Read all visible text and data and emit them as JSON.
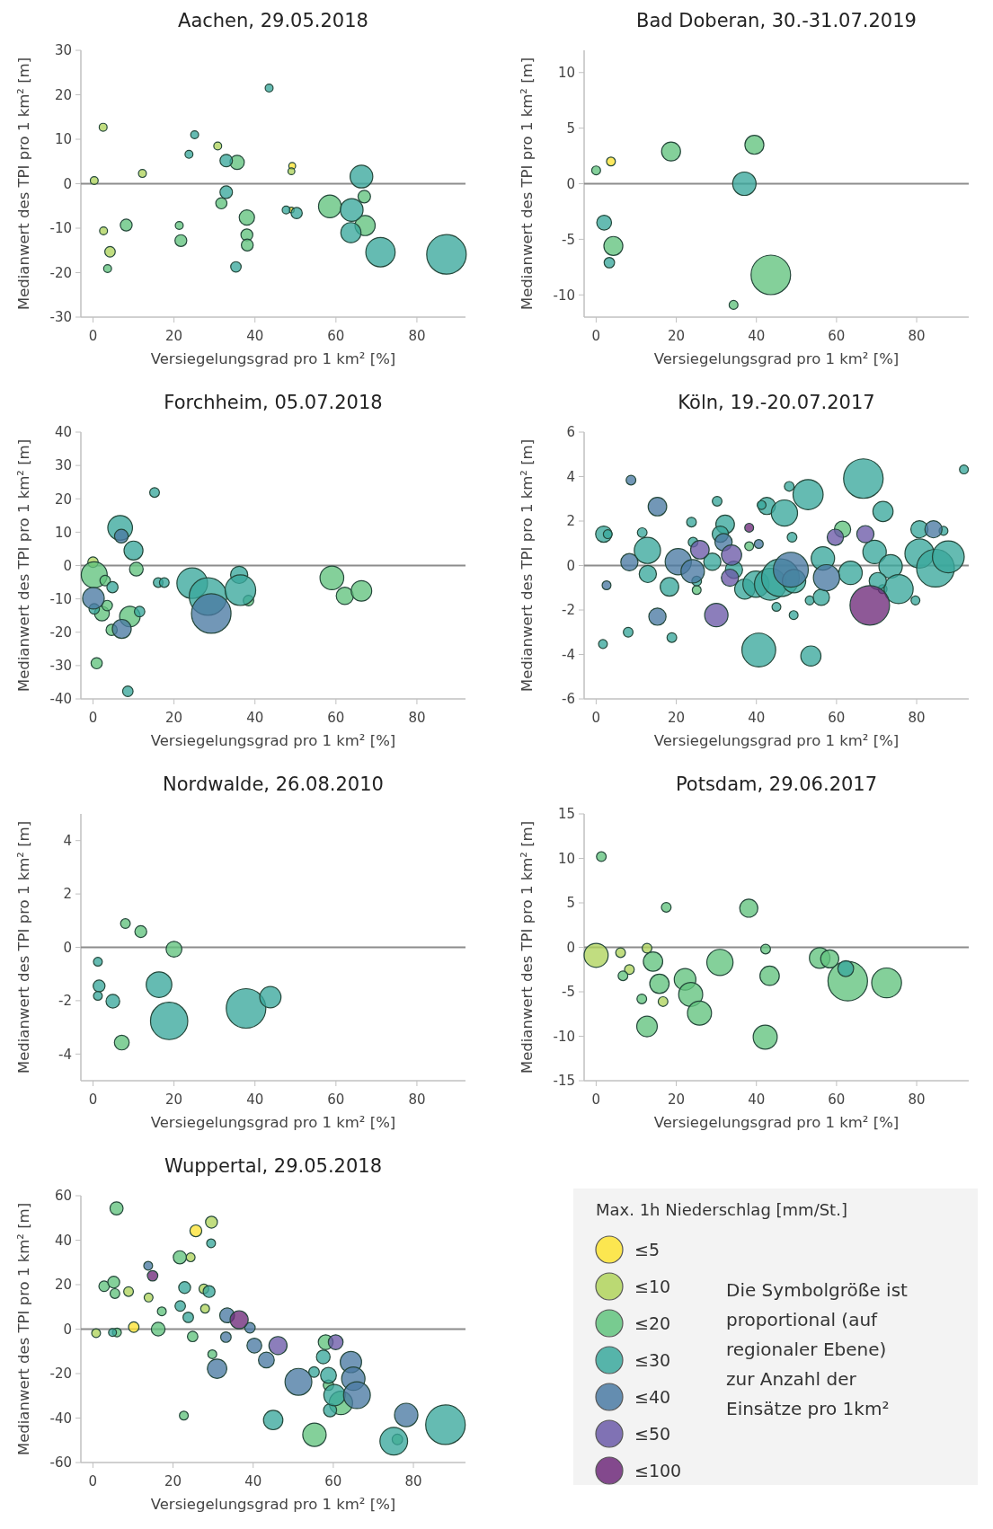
{
  "chart_data": [
    {
      "type": "bubble",
      "title": "Aachen, 29.05.2018",
      "xlabel": "Versiegelungsgrad pro 1 km² [%]",
      "ylabel": "Medianwert des TPI pro 1 km² [m]",
      "xlim": [
        -3,
        92
      ],
      "xticks": [
        0,
        20,
        40,
        60,
        80
      ],
      "ylim": [
        -30,
        30
      ],
      "yticks": [
        -30,
        -20,
        -10,
        0,
        10,
        20,
        30
      ],
      "ref_lines": [
        {
          "axis": "y",
          "value": 0,
          "color": "#8c8c8c"
        }
      ],
      "series": [
        {
          "color": "#fde333",
          "x": [
            49.2,
            49
          ],
          "values": [
            4,
            -5.9
          ],
          "sizes": [
            0.03,
            0.02
          ]
        },
        {
          "color": "#b0d45c",
          "x": [
            0.3,
            2.5,
            2.6,
            4.2,
            12.2,
            30.8,
            49
          ],
          "values": [
            0.7,
            12.7,
            -10.6,
            -15.3,
            2.3,
            8.5,
            2.8
          ],
          "sizes": [
            0.04,
            0.04,
            0.04,
            0.07,
            0.04,
            0.04,
            0.03
          ]
        },
        {
          "color": "#62c37e",
          "x": [
            3.6,
            8.2,
            21.3,
            21.7,
            31.7,
            35.6,
            38,
            38,
            38.1,
            58.5,
            67,
            67.2
          ],
          "values": [
            -19.1,
            -9.3,
            -9.4,
            -12.8,
            -4.4,
            4.8,
            -7.6,
            -11.5,
            -13.8,
            -5.1,
            -2.9,
            -9.4
          ],
          "sizes": [
            0.04,
            0.09,
            0.04,
            0.09,
            0.08,
            0.13,
            0.15,
            0.09,
            0.09,
            0.33,
            0.1,
            0.26
          ]
        },
        {
          "color": "#3aa89c",
          "x": [
            23.7,
            25.1,
            32.9,
            32.9,
            35.3,
            43.5,
            47.7,
            50.3,
            63.9,
            63.7,
            66.3,
            71,
            87.3
          ],
          "values": [
            6.6,
            11,
            5.2,
            -1.9,
            -18.7,
            21.5,
            -5.9,
            -6.6,
            -5.9,
            -11,
            1.6,
            -15.4,
            -15.9
          ],
          "sizes": [
            0.04,
            0.04,
            0.1,
            0.1,
            0.07,
            0.04,
            0.04,
            0.08,
            0.33,
            0.26,
            0.33,
            0.55,
            1
          ]
        }
      ]
    },
    {
      "type": "bubble",
      "title": "Bad Doberan, 30.-31.07.2019",
      "xlabel": "Versiegelungsgrad pro 1 km² [%]",
      "ylabel": "Medianwert des TPI pro 1 km² [m]",
      "xlim": [
        -3,
        93
      ],
      "xticks": [
        0,
        20,
        40,
        60,
        80
      ],
      "ylim": [
        -12,
        12
      ],
      "yticks": [
        -10,
        -5,
        0,
        5,
        10
      ],
      "ref_lines": [
        {
          "axis": "y",
          "value": 0,
          "color": "#8c8c8c"
        }
      ],
      "series": [
        {
          "color": "#fde333",
          "x": [
            3.7
          ],
          "values": [
            2
          ],
          "sizes": [
            0.05
          ]
        },
        {
          "color": "#62c37e",
          "x": [
            0,
            18.7,
            39.5,
            4.3,
            43.6,
            34.3
          ],
          "values": [
            1.2,
            2.9,
            3.5,
            -5.6,
            -8.2,
            -10.9
          ],
          "sizes": [
            0.05,
            0.23,
            0.23,
            0.23,
            1,
            0.05
          ]
        },
        {
          "color": "#3aa89c",
          "x": [
            37,
            2,
            3.3
          ],
          "values": [
            0,
            -3.5,
            -7.1
          ],
          "sizes": [
            0.35,
            0.14,
            0.07
          ]
        }
      ]
    },
    {
      "type": "bubble",
      "title": "Forchheim, 05.07.2018",
      "xlabel": "Versiegelungsgrad pro 1 km² [%]",
      "ylabel": "Medianwert des TPI pro 1 km² [m]",
      "xlim": [
        -3,
        92
      ],
      "xticks": [
        0,
        20,
        40,
        60,
        80
      ],
      "ylim": [
        -40,
        40
      ],
      "yticks": [
        -40,
        -30,
        -20,
        -10,
        0,
        10,
        20,
        30,
        40
      ],
      "ref_lines": [
        {
          "axis": "y",
          "value": 0,
          "color": "#8c8c8c"
        }
      ],
      "series": [
        {
          "color": "#b0d45c",
          "x": [
            0
          ],
          "values": [
            1
          ],
          "sizes": [
            0.07
          ]
        },
        {
          "color": "#62c37e",
          "x": [
            0.3,
            3,
            2.2,
            3.5,
            4.6,
            0.9,
            10.7,
            9.1,
            38.4,
            59,
            62.2,
            66.3
          ],
          "values": [
            -2.8,
            -4.5,
            -14.4,
            -12,
            -19.3,
            -29.3,
            -1.1,
            -15.3,
            -10.5,
            -3.7,
            -9.1,
            -7.6
          ],
          "sizes": [
            0.43,
            0.07,
            0.14,
            0.07,
            0.08,
            0.08,
            0.12,
            0.27,
            0.07,
            0.36,
            0.19,
            0.27
          ]
        },
        {
          "color": "#3aa89c",
          "x": [
            4.8,
            0.3,
            8.6,
            6.7,
            10,
            11.5,
            15.2,
            16.1,
            17.6,
            24.5,
            28.4,
            36.1,
            36.4
          ],
          "values": [
            -6.5,
            -13,
            -37.7,
            11.3,
            4.5,
            -13.8,
            21.9,
            -5.1,
            -5.1,
            -5.3,
            -9.3,
            -2.8,
            -7.4
          ],
          "sizes": [
            0.08,
            0.07,
            0.07,
            0.39,
            0.23,
            0.07,
            0.06,
            0.06,
            0.06,
            0.6,
            0.9,
            0.19,
            0.6
          ]
        },
        {
          "color": "#4a7aa3",
          "x": [
            0.1,
            7.1,
            7,
            29.2
          ],
          "values": [
            -9.8,
            -19,
            8.8,
            -14.4
          ],
          "sizes": [
            0.3,
            0.23,
            0.12,
            1
          ]
        }
      ]
    },
    {
      "type": "bubble",
      "title": "Köln, 19.-20.07.2017",
      "xlabel": "Versiegelungsgrad pro 1 km² [%]",
      "ylabel": "Medianwert des TPI pro 1 km² [m]",
      "xlim": [
        -3,
        93
      ],
      "xticks": [
        0,
        20,
        40,
        60,
        80
      ],
      "ylim": [
        -6,
        6
      ],
      "yticks": [
        -6,
        -4,
        -2,
        0,
        2,
        4,
        6
      ],
      "ref_lines": [
        {
          "axis": "y",
          "value": 0,
          "color": "#8c8c8c"
        }
      ],
      "series": [
        {
          "color": "#62c37e",
          "x": [
            38.2,
            25.1,
            61.5
          ],
          "values": [
            0.87,
            -1.1,
            1.63
          ],
          "sizes": [
            0.05,
            0.05,
            0.17
          ]
        },
        {
          "color": "#3aa89c",
          "x": [
            1.9,
            2.9,
            1.7,
            8,
            11.5,
            12.8,
            12.9,
            18.3,
            18.9,
            23.8,
            24.2,
            25.1,
            30.2,
            29,
            32.2,
            31,
            34.4,
            42.6,
            41.3,
            48.2,
            47,
            52.9,
            48.9,
            40.6,
            53.6,
            37.1,
            39.9,
            43.5,
            46,
            49.4,
            45,
            49.3,
            53.3,
            56.2,
            56.6,
            63.5,
            66.7,
            69.5,
            71.6,
            71.5,
            73.5,
            75.5,
            79.7,
            80.7,
            80.7,
            86.7,
            84.7,
            87.9,
            91.8,
            70.3
          ],
          "values": [
            1.41,
            1.41,
            -3.53,
            -3,
            1.48,
            0.68,
            -0.38,
            -0.96,
            -3.24,
            1.95,
            1.05,
            -0.7,
            2.89,
            0.17,
            1.85,
            1.41,
            -0.19,
            2.68,
            2.72,
            3.56,
            2.36,
            3.19,
            1.27,
            -3.8,
            -4.07,
            -1.06,
            -0.84,
            -0.84,
            -0.55,
            -0.7,
            -1.86,
            -2.23,
            -1.57,
            -1.43,
            0.32,
            -0.33,
            3.91,
            0.61,
            2.43,
            -1.06,
            -0.04,
            -1.06,
            -1.57,
            1.63,
            0.54,
            1.56,
            -0.12,
            0.39,
            4.32,
            -0.7
          ],
          "sizes": [
            0.17,
            0.05,
            0.05,
            0.06,
            0.06,
            0.44,
            0.19,
            0.22,
            0.06,
            0.06,
            0.06,
            0.06,
            0.06,
            0.19,
            0.22,
            0.17,
            0.19,
            0.19,
            0.05,
            0.06,
            0.44,
            0.58,
            0.06,
            0.73,
            0.26,
            0.26,
            0.44,
            0.65,
            0.91,
            0.35,
            0.05,
            0.05,
            0.05,
            0.17,
            0.35,
            0.35,
            1,
            0.35,
            0.26,
            0.05,
            0.35,
            0.54,
            0.05,
            0.19,
            0.54,
            0.05,
            0.91,
            0.65,
            0.05,
            0.19
          ]
        },
        {
          "color": "#4a7aa3",
          "x": [
            8.7,
            15.3,
            2.6,
            8.3,
            15.3,
            20.5,
            24.1,
            31.8,
            40.6,
            48.6,
            57.5,
            84.2
          ],
          "values": [
            3.84,
            2.65,
            -0.89,
            0.15,
            -2.3,
            0.17,
            -0.26,
            1.05,
            0.97,
            -0.19,
            -0.55,
            1.63
          ],
          "sizes": [
            0.06,
            0.22,
            0.05,
            0.19,
            0.19,
            0.44,
            0.35,
            0.19,
            0.05,
            0.78,
            0.44,
            0.19
          ]
        },
        {
          "color": "#6b5aa8",
          "x": [
            25.9,
            30,
            33.8,
            33.4,
            59.7,
            67.2
          ],
          "values": [
            0.71,
            -2.23,
            0.47,
            -0.55,
            1.27,
            1.41
          ],
          "sizes": [
            0.22,
            0.35,
            0.26,
            0.19,
            0.17,
            0.19
          ]
        },
        {
          "color": "#6e2a7a",
          "x": [
            38.2,
            68.3
          ],
          "values": [
            1.7,
            -1.79
          ],
          "sizes": [
            0.05,
            1
          ]
        }
      ]
    },
    {
      "type": "bubble",
      "title": "Nordwalde, 26.08.2010",
      "xlabel": "Versiegelungsgrad pro 1 km² [%]",
      "ylabel": "Medianwert des TPI pro 1 km² [m]",
      "xlim": [
        -3,
        92
      ],
      "xticks": [
        0,
        20,
        40,
        60,
        80
      ],
      "ylim": [
        -5,
        5
      ],
      "yticks": [
        -4,
        -2,
        0,
        2,
        4
      ],
      "ref_lines": [
        {
          "axis": "y",
          "value": 0,
          "color": "#8c8c8c"
        }
      ],
      "series": [
        {
          "color": "#62c37e",
          "x": [
            8,
            11.8,
            20,
            7.1
          ],
          "values": [
            0.89,
            0.59,
            -0.07,
            -3.57
          ],
          "sizes": [
            0.06,
            0.09,
            0.16,
            0.14
          ]
        },
        {
          "color": "#3aa89c",
          "x": [
            1.2,
            1.5,
            1.2,
            4.9,
            16.3,
            18.8,
            37.8,
            43.8
          ],
          "values": [
            -0.54,
            -1.45,
            -1.82,
            -2.02,
            -1.4,
            -2.76,
            -2.29,
            -1.87
          ],
          "sizes": [
            0.05,
            0.09,
            0.05,
            0.12,
            0.42,
            0.89,
            1,
            0.29
          ]
        }
      ]
    },
    {
      "type": "bubble",
      "title": "Potsdam, 29.06.2017",
      "xlabel": "Versiegelungsgrad pro 1 km² [%]",
      "ylabel": "Medianwert des TPI pro 1 km² [m]",
      "xlim": [
        -3,
        93
      ],
      "xticks": [
        0,
        20,
        40,
        60,
        80
      ],
      "ylim": [
        -15,
        15
      ],
      "yticks": [
        -15,
        -10,
        -5,
        0,
        5,
        10,
        15
      ],
      "ref_lines": [
        {
          "axis": "y",
          "value": 0,
          "color": "#8c8c8c"
        }
      ],
      "series": [
        {
          "color": "#b0d45c",
          "x": [
            0,
            6.1,
            8.3,
            12.7,
            16.7
          ],
          "values": [
            -0.9,
            -0.6,
            -2.5,
            -0.1,
            -6.1
          ],
          "sizes": [
            0.37,
            0.06,
            0.06,
            0.06,
            0.06
          ]
        },
        {
          "color": "#62c37e",
          "x": [
            1.3,
            6.7,
            11.4,
            12.7,
            14.2,
            15.8,
            17.5,
            22.2,
            23.6,
            25.8,
            30.9,
            38.1,
            42.3,
            43.3,
            42.2,
            55.8,
            58.3,
            62.8,
            72.5
          ],
          "values": [
            10.2,
            -3.2,
            -5.8,
            -8.9,
            -1.6,
            -4.1,
            4.5,
            -3.6,
            -5.3,
            -7.4,
            -1.7,
            4.4,
            -0.2,
            -3.2,
            -10.1,
            -1.2,
            -1.3,
            -3.8,
            -4
          ],
          "sizes": [
            0.06,
            0.06,
            0.06,
            0.27,
            0.24,
            0.24,
            0.06,
            0.3,
            0.37,
            0.37,
            0.44,
            0.21,
            0.06,
            0.24,
            0.37,
            0.27,
            0.21,
            1,
            0.57
          ]
        },
        {
          "color": "#3aa89c",
          "x": [
            62.3
          ],
          "values": [
            -2.4
          ],
          "sizes": [
            0.16
          ]
        }
      ]
    },
    {
      "type": "bubble",
      "title": "Wuppertal, 29.05.2018",
      "xlabel": "Versiegelungsgrad pro 1 km² [%]",
      "ylabel": "Medianwert des TPI pro 1 km² [m]",
      "xlim": [
        -3,
        93
      ],
      "xticks": [
        0,
        20,
        40,
        60,
        80
      ],
      "ylim": [
        -60,
        60
      ],
      "yticks": [
        -60,
        -40,
        -20,
        0,
        20,
        40,
        60
      ],
      "ref_lines": [
        {
          "axis": "y",
          "value": 0,
          "color": "#8c8c8c"
        }
      ],
      "series": [
        {
          "color": "#fde333",
          "x": [
            10.2,
            25.7
          ],
          "values": [
            0.9,
            44.2
          ],
          "sizes": [
            0.07,
            0.09
          ]
        },
        {
          "color": "#b0d45c",
          "x": [
            0.8,
            8.9,
            13.9,
            24.4,
            29.6,
            27.7,
            28
          ],
          "values": [
            -1.8,
            16.9,
            14.2,
            32.3,
            48.1,
            18.1,
            9.2
          ],
          "sizes": [
            0.05,
            0.06,
            0.05,
            0.05,
            0.09,
            0.06,
            0.05
          ]
        },
        {
          "color": "#62c37e",
          "x": [
            5.9,
            2.8,
            5.2,
            5.5,
            6,
            16.3,
            17.2,
            21.7,
            24.9,
            22.7,
            29.8,
            55.3,
            58.1,
            58.8,
            61.9,
            76
          ],
          "values": [
            54.3,
            19.3,
            21.1,
            16,
            -1.5,
            0,
            8,
            32.3,
            -3.3,
            -38.9,
            -11.3,
            -47.5,
            -5.9,
            -25.2,
            -33.2,
            -49.6
          ],
          "sizes": [
            0.11,
            0.07,
            0.09,
            0.06,
            0.05,
            0.12,
            0.05,
            0.11,
            0.07,
            0.05,
            0.05,
            0.35,
            0.14,
            0.07,
            0.35,
            0.07
          ]
        },
        {
          "color": "#3aa89c",
          "x": [
            4.9,
            21.8,
            22.9,
            23.8,
            29.5,
            29,
            45,
            55.2,
            57.5,
            58.8,
            59.2,
            60.3,
            75.1,
            88
          ],
          "values": [
            -1.5,
            10.4,
            18.7,
            5.3,
            38.6,
            16.9,
            -40.9,
            -19.3,
            -12.5,
            -20.8,
            -36.5,
            -29.7,
            -50.4,
            -43
          ],
          "sizes": [
            0.04,
            0.07,
            0.09,
            0.07,
            0.05,
            0.09,
            0.24,
            0.07,
            0.12,
            0.16,
            0.11,
            0.29,
            0.49,
            1
          ]
        },
        {
          "color": "#4a7aa3",
          "x": [
            13.8,
            31,
            33.5,
            33.2,
            39.2,
            40.3,
            43.3,
            51.3,
            64.4,
            65,
            65.9,
            78.2
          ],
          "values": [
            28.5,
            -17.8,
            6.2,
            -3.6,
            0.6,
            -7.4,
            -13.9,
            -23.7,
            -14.8,
            -22.3,
            -29.7,
            -38.6
          ],
          "sizes": [
            0.05,
            0.24,
            0.14,
            0.07,
            0.07,
            0.14,
            0.16,
            0.46,
            0.29,
            0.35,
            0.46,
            0.35
          ]
        },
        {
          "color": "#6b5aa8",
          "x": [
            46.2,
            60.6
          ],
          "values": [
            -7.4,
            -5.9
          ],
          "sizes": [
            0.21,
            0.14
          ]
        },
        {
          "color": "#6e2a7a",
          "x": [
            14.9,
            36.5
          ],
          "values": [
            24,
            4.2
          ],
          "sizes": [
            0.07,
            0.21
          ]
        }
      ]
    },
    {
      "type": "other",
      "legend_title": "Max. 1h Niederschlag [mm/St.]",
      "legend": "left",
      "series": [
        {
          "name": "≤5",
          "color": "#fde333"
        },
        {
          "name": "≤10",
          "color": "#b0d45c"
        },
        {
          "name": "≤20",
          "color": "#62c37e"
        },
        {
          "name": "≤30",
          "color": "#3aa89c"
        },
        {
          "name": "≤40",
          "color": "#4a7aa3"
        },
        {
          "name": "≤50",
          "color": "#6b5aa8"
        },
        {
          "name": "≤100",
          "color": "#6e2a7a"
        }
      ],
      "annotations": [
        "Die Symbolgröße ist proportional (auf regionaler Ebene) zur Anzahl der Einsätze pro 1km²"
      ]
    }
  ]
}
